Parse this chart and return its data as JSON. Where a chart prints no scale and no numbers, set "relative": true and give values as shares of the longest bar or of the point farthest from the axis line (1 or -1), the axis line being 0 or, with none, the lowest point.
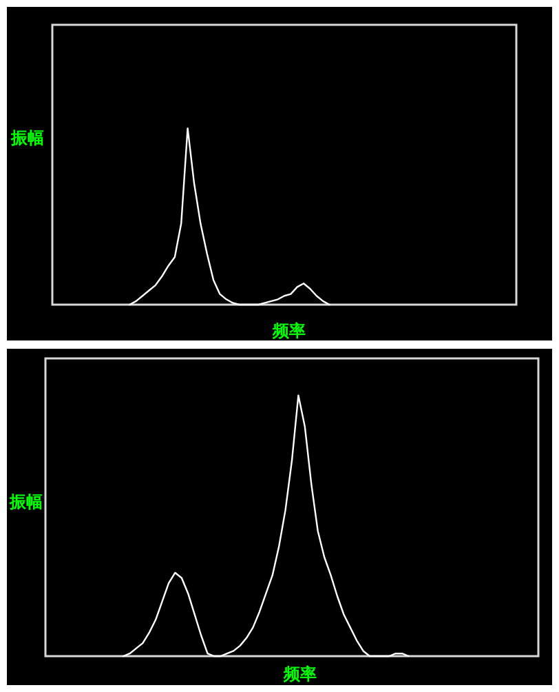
{
  "chart_data": [
    {
      "type": "line",
      "relative": true,
      "xlabel": "频率",
      "ylabel": "振幅",
      "color": "#ffffff",
      "categories": [
        null,
        null,
        null,
        null,
        null,
        null,
        null,
        null,
        null,
        null,
        null,
        null,
        null,
        null,
        null,
        null,
        null,
        null,
        null,
        null,
        null,
        null,
        null,
        null,
        null,
        null,
        null,
        null,
        null,
        null,
        null,
        null,
        null,
        null,
        null,
        null,
        null,
        null,
        null,
        null,
        null,
        null,
        null,
        null,
        null,
        null,
        null,
        null,
        null,
        null,
        null,
        null,
        null,
        null,
        null,
        null,
        null,
        null,
        null,
        null,
        null,
        null,
        null,
        null,
        null,
        null,
        null,
        null,
        null,
        null,
        null,
        null,
        null
      ],
      "values": [
        null,
        null,
        null,
        null,
        null,
        null,
        null,
        null,
        null,
        null,
        null,
        null,
        0,
        0.02,
        0.05,
        0.08,
        0.11,
        0.16,
        0.22,
        0.27,
        0.46,
        1,
        0.69,
        0.46,
        0.29,
        0.14,
        0.06,
        0.03,
        0.01,
        0,
        0,
        0,
        0,
        0.01,
        0.02,
        0.03,
        0.05,
        0.06,
        0.1,
        0.12,
        0.09,
        0.05,
        0.02,
        0,
        null,
        null,
        null,
        null,
        null,
        null,
        null,
        null,
        null,
        null,
        null,
        null,
        null,
        null,
        null,
        null,
        null,
        null,
        null,
        null,
        null,
        null,
        null,
        null,
        null,
        null,
        null,
        null,
        null
      ]
    },
    {
      "type": "line",
      "relative": true,
      "xlabel": "频率",
      "ylabel": "振幅",
      "color": "#ffffff",
      "categories": [
        null,
        null,
        null,
        null,
        null,
        null,
        null,
        null,
        null,
        null,
        null,
        null,
        null,
        null,
        null,
        null,
        null,
        null,
        null,
        null,
        null,
        null,
        null,
        null,
        null,
        null,
        null,
        null,
        null,
        null,
        null,
        null,
        null,
        null,
        null,
        null,
        null,
        null,
        null,
        null,
        null,
        null,
        null,
        null,
        null,
        null,
        null,
        null,
        null,
        null,
        null,
        null,
        null,
        null,
        null,
        null,
        null,
        null,
        null,
        null,
        null,
        null,
        null,
        null,
        null,
        null,
        null,
        null,
        null,
        null,
        null,
        null,
        null,
        null,
        null,
        null,
        null
      ],
      "values": [
        null,
        null,
        null,
        null,
        null,
        null,
        null,
        null,
        null,
        null,
        null,
        null,
        0,
        0.01,
        0.03,
        0.05,
        0.09,
        0.14,
        0.21,
        0.28,
        0.32,
        0.3,
        0.24,
        0.16,
        0.08,
        0.01,
        0,
        0,
        0.01,
        0.02,
        0.04,
        0.07,
        0.11,
        0.17,
        0.24,
        0.31,
        0.42,
        0.56,
        0.75,
        1,
        0.88,
        0.66,
        0.48,
        0.38,
        0.31,
        0.23,
        0.16,
        0.11,
        0.06,
        0.02,
        0,
        0,
        0,
        0,
        0.01,
        0.01,
        0,
        null,
        null,
        null,
        null,
        null,
        null,
        null,
        null,
        null,
        null,
        null,
        null,
        null,
        null,
        null,
        null,
        null,
        null,
        null,
        null
      ]
    }
  ]
}
